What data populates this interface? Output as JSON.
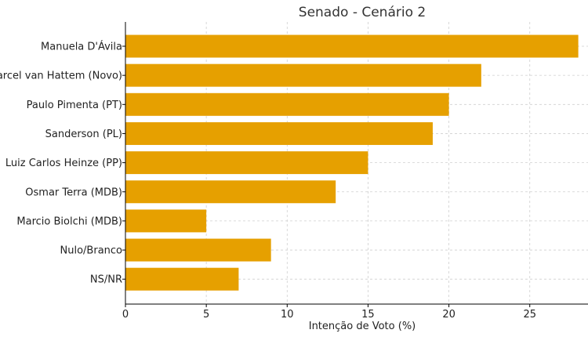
{
  "chart_data": {
    "type": "bar",
    "orientation": "horizontal",
    "title": "Senado - Cenário 2",
    "xlabel": "Intenção de Voto (%)",
    "ylabel": "",
    "categories": [
      "Manuela D'Ávila",
      "Marcel van Hattem (Novo)",
      "Paulo Pimenta (PT)",
      "Sanderson (PL)",
      "Luiz Carlos Heinze (PP)",
      "Osmar Terra (MDB)",
      "Marcio Biolchi (MDB)",
      "Nulo/Branco",
      "NS/NR"
    ],
    "values": [
      28,
      22,
      20,
      19,
      15,
      13,
      5,
      9,
      7
    ],
    "xlim": [
      0,
      28.6
    ],
    "xticks": [
      0,
      5,
      10,
      15,
      20,
      25
    ],
    "grid": true,
    "bar_color": "#E6A000"
  }
}
